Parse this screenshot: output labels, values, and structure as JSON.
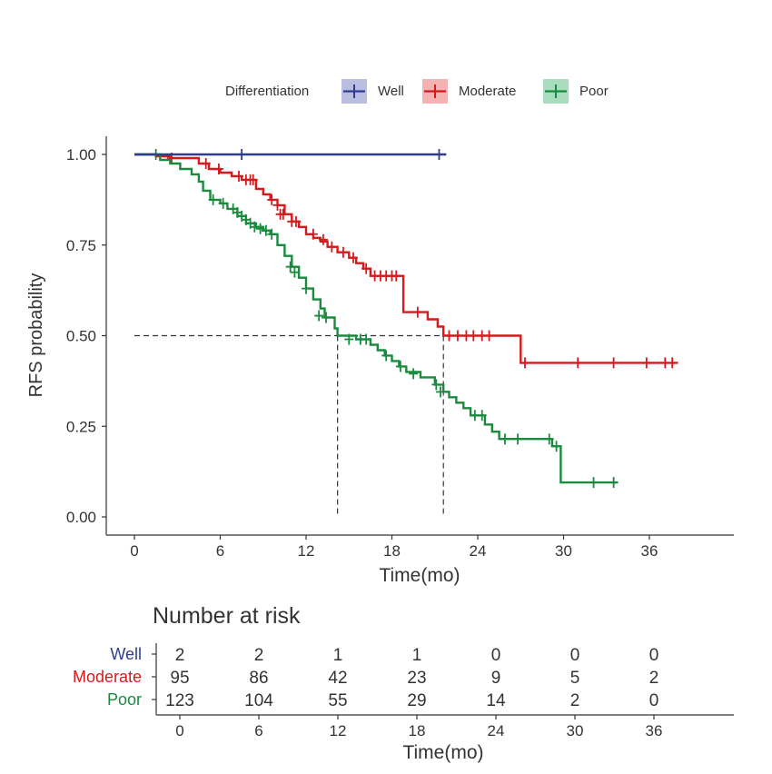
{
  "legend": {
    "title": "Differentiation",
    "entries": [
      {
        "label": "Well",
        "color": "#2e3d8f"
      },
      {
        "label": "Moderate",
        "color": "#d7191c"
      },
      {
        "label": "Poor",
        "color": "#1a8a3f"
      }
    ]
  },
  "chart_data": {
    "type": "line",
    "subtype": "kaplan-meier",
    "title": "",
    "xlabel": "Time(mo)",
    "ylabel": "RFS probability",
    "xlim": [
      -1,
      40.5
    ],
    "ylim": [
      0,
      1.05
    ],
    "xticks": [
      0,
      6,
      12,
      18,
      24,
      30,
      36
    ],
    "xtick_labels": [
      "0",
      "6",
      "12",
      "18",
      "24",
      "30",
      "36"
    ],
    "yticks": [
      0,
      0.25,
      0.5,
      0.75,
      1
    ],
    "ytick_labels": [
      "0.00",
      "0.25",
      "0.50",
      "0.75",
      "1.00"
    ],
    "median_line": {
      "y": 0.5,
      "x_start": 0,
      "x_end": 21.6
    },
    "median_markers": [
      {
        "x": 14.2,
        "series": "Poor"
      },
      {
        "x": 21.6,
        "series": "Moderate"
      }
    ],
    "series": [
      {
        "name": "Well",
        "color": "#2e3d8f",
        "steps": [
          [
            0,
            1.0
          ],
          [
            21.8,
            1.0
          ]
        ],
        "censors": [
          [
            7.5,
            1.0
          ],
          [
            21.3,
            1.0
          ]
        ]
      },
      {
        "name": "Moderate",
        "color": "#d7191c",
        "steps": [
          [
            0,
            1.0
          ],
          [
            1.5,
            1.0
          ],
          [
            1.5,
            0.995
          ],
          [
            2.5,
            0.995
          ],
          [
            2.5,
            0.99
          ],
          [
            4.5,
            0.99
          ],
          [
            4.5,
            0.975
          ],
          [
            5.2,
            0.975
          ],
          [
            5.2,
            0.96
          ],
          [
            6.0,
            0.96
          ],
          [
            6.0,
            0.95
          ],
          [
            6.8,
            0.95
          ],
          [
            6.8,
            0.94
          ],
          [
            7.5,
            0.94
          ],
          [
            7.5,
            0.93
          ],
          [
            8.5,
            0.93
          ],
          [
            8.5,
            0.905
          ],
          [
            9.0,
            0.905
          ],
          [
            9.0,
            0.89
          ],
          [
            9.5,
            0.89
          ],
          [
            9.5,
            0.875
          ],
          [
            10.0,
            0.875
          ],
          [
            10.0,
            0.86
          ],
          [
            10.5,
            0.86
          ],
          [
            10.5,
            0.835
          ],
          [
            11.0,
            0.835
          ],
          [
            11.0,
            0.815
          ],
          [
            11.5,
            0.815
          ],
          [
            11.5,
            0.8
          ],
          [
            12.0,
            0.8
          ],
          [
            12.0,
            0.78
          ],
          [
            12.5,
            0.78
          ],
          [
            12.5,
            0.77
          ],
          [
            13.0,
            0.77
          ],
          [
            13.0,
            0.76
          ],
          [
            13.5,
            0.76
          ],
          [
            13.5,
            0.745
          ],
          [
            14.2,
            0.745
          ],
          [
            14.2,
            0.73
          ],
          [
            15.0,
            0.73
          ],
          [
            15.0,
            0.715
          ],
          [
            15.5,
            0.715
          ],
          [
            15.5,
            0.7
          ],
          [
            16.0,
            0.7
          ],
          [
            16.0,
            0.685
          ],
          [
            16.5,
            0.685
          ],
          [
            16.5,
            0.665
          ],
          [
            18.8,
            0.665
          ],
          [
            18.8,
            0.565
          ],
          [
            20.5,
            0.565
          ],
          [
            20.5,
            0.545
          ],
          [
            21.2,
            0.545
          ],
          [
            21.2,
            0.525
          ],
          [
            21.6,
            0.525
          ],
          [
            21.6,
            0.5
          ],
          [
            27.0,
            0.5
          ],
          [
            27.0,
            0.425
          ],
          [
            38.0,
            0.425
          ]
        ],
        "censors": [
          [
            2.6,
            0.99
          ],
          [
            5.0,
            0.975
          ],
          [
            5.9,
            0.96
          ],
          [
            7.3,
            0.94
          ],
          [
            7.8,
            0.93
          ],
          [
            8.1,
            0.93
          ],
          [
            8.3,
            0.93
          ],
          [
            9.6,
            0.875
          ],
          [
            10.0,
            0.86
          ],
          [
            10.2,
            0.835
          ],
          [
            10.4,
            0.835
          ],
          [
            11.0,
            0.815
          ],
          [
            11.3,
            0.815
          ],
          [
            12.5,
            0.78
          ],
          [
            13.2,
            0.765
          ],
          [
            13.8,
            0.745
          ],
          [
            14.6,
            0.73
          ],
          [
            15.3,
            0.715
          ],
          [
            16.2,
            0.685
          ],
          [
            16.8,
            0.665
          ],
          [
            17.2,
            0.665
          ],
          [
            17.6,
            0.665
          ],
          [
            18.0,
            0.665
          ],
          [
            18.3,
            0.665
          ],
          [
            19.8,
            0.565
          ],
          [
            22.0,
            0.5
          ],
          [
            22.6,
            0.5
          ],
          [
            23.2,
            0.5
          ],
          [
            23.7,
            0.5
          ],
          [
            24.3,
            0.5
          ],
          [
            24.8,
            0.5
          ],
          [
            27.3,
            0.425
          ],
          [
            31.0,
            0.425
          ],
          [
            33.5,
            0.425
          ],
          [
            35.8,
            0.425
          ],
          [
            37.1,
            0.425
          ],
          [
            37.6,
            0.425
          ]
        ]
      },
      {
        "name": "Poor",
        "color": "#1a8a3f",
        "steps": [
          [
            0,
            1.0
          ],
          [
            1.8,
            1.0
          ],
          [
            1.8,
            0.985
          ],
          [
            2.5,
            0.985
          ],
          [
            2.5,
            0.975
          ],
          [
            3.2,
            0.975
          ],
          [
            3.2,
            0.96
          ],
          [
            4.0,
            0.96
          ],
          [
            4.0,
            0.945
          ],
          [
            4.5,
            0.945
          ],
          [
            4.5,
            0.925
          ],
          [
            4.8,
            0.925
          ],
          [
            4.8,
            0.9
          ],
          [
            5.3,
            0.9
          ],
          [
            5.3,
            0.875
          ],
          [
            6.0,
            0.875
          ],
          [
            6.0,
            0.865
          ],
          [
            6.5,
            0.865
          ],
          [
            6.5,
            0.85
          ],
          [
            7.2,
            0.85
          ],
          [
            7.2,
            0.83
          ],
          [
            7.8,
            0.83
          ],
          [
            7.8,
            0.81
          ],
          [
            8.5,
            0.81
          ],
          [
            8.5,
            0.8
          ],
          [
            9.0,
            0.8
          ],
          [
            9.0,
            0.79
          ],
          [
            9.5,
            0.79
          ],
          [
            9.5,
            0.78
          ],
          [
            10.0,
            0.78
          ],
          [
            10.0,
            0.75
          ],
          [
            10.5,
            0.75
          ],
          [
            10.5,
            0.72
          ],
          [
            11.0,
            0.72
          ],
          [
            11.0,
            0.69
          ],
          [
            11.5,
            0.69
          ],
          [
            11.5,
            0.66
          ],
          [
            12.0,
            0.66
          ],
          [
            12.0,
            0.63
          ],
          [
            12.5,
            0.63
          ],
          [
            12.5,
            0.6
          ],
          [
            13.0,
            0.6
          ],
          [
            13.0,
            0.575
          ],
          [
            13.3,
            0.575
          ],
          [
            13.3,
            0.55
          ],
          [
            14.0,
            0.55
          ],
          [
            14.0,
            0.52
          ],
          [
            14.2,
            0.52
          ],
          [
            14.2,
            0.5
          ],
          [
            15.5,
            0.5
          ],
          [
            15.5,
            0.49
          ],
          [
            16.5,
            0.49
          ],
          [
            16.5,
            0.475
          ],
          [
            17.0,
            0.475
          ],
          [
            17.0,
            0.46
          ],
          [
            17.5,
            0.46
          ],
          [
            17.5,
            0.445
          ],
          [
            18.0,
            0.445
          ],
          [
            18.0,
            0.43
          ],
          [
            18.5,
            0.43
          ],
          [
            18.5,
            0.415
          ],
          [
            19.0,
            0.415
          ],
          [
            19.0,
            0.4
          ],
          [
            20.0,
            0.4
          ],
          [
            20.0,
            0.385
          ],
          [
            21.0,
            0.385
          ],
          [
            21.0,
            0.365
          ],
          [
            21.6,
            0.365
          ],
          [
            21.6,
            0.345
          ],
          [
            22.0,
            0.345
          ],
          [
            22.0,
            0.33
          ],
          [
            22.5,
            0.33
          ],
          [
            22.5,
            0.315
          ],
          [
            23.0,
            0.315
          ],
          [
            23.0,
            0.3
          ],
          [
            23.5,
            0.3
          ],
          [
            23.5,
            0.28
          ],
          [
            24.5,
            0.28
          ],
          [
            24.5,
            0.255
          ],
          [
            25.0,
            0.255
          ],
          [
            25.0,
            0.235
          ],
          [
            25.5,
            0.235
          ],
          [
            25.5,
            0.215
          ],
          [
            29.2,
            0.215
          ],
          [
            29.2,
            0.195
          ],
          [
            29.8,
            0.195
          ],
          [
            29.8,
            0.095
          ],
          [
            33.8,
            0.095
          ]
        ],
        "censors": [
          [
            1.5,
            1.0
          ],
          [
            5.5,
            0.875
          ],
          [
            6.2,
            0.865
          ],
          [
            6.9,
            0.85
          ],
          [
            7.2,
            0.84
          ],
          [
            7.5,
            0.83
          ],
          [
            7.8,
            0.82
          ],
          [
            8.1,
            0.81
          ],
          [
            8.4,
            0.8
          ],
          [
            8.8,
            0.795
          ],
          [
            9.2,
            0.79
          ],
          [
            9.6,
            0.78
          ],
          [
            10.9,
            0.69
          ],
          [
            11.2,
            0.675
          ],
          [
            12.0,
            0.63
          ],
          [
            12.9,
            0.555
          ],
          [
            13.4,
            0.55
          ],
          [
            15.0,
            0.49
          ],
          [
            15.8,
            0.49
          ],
          [
            16.2,
            0.49
          ],
          [
            17.6,
            0.445
          ],
          [
            18.6,
            0.415
          ],
          [
            19.5,
            0.395
          ],
          [
            21.1,
            0.365
          ],
          [
            21.4,
            0.345
          ],
          [
            23.8,
            0.28
          ],
          [
            24.3,
            0.28
          ],
          [
            25.9,
            0.215
          ],
          [
            26.8,
            0.215
          ],
          [
            29.0,
            0.215
          ],
          [
            29.5,
            0.195
          ],
          [
            32.1,
            0.095
          ],
          [
            33.5,
            0.095
          ]
        ]
      }
    ]
  },
  "risk_table": {
    "title": "Number at risk",
    "xlabel": "Time(mo)",
    "time_points": [
      0,
      6,
      12,
      18,
      24,
      30,
      36
    ],
    "time_labels": [
      "0",
      "6",
      "12",
      "18",
      "24",
      "30",
      "36"
    ],
    "rows": [
      {
        "label": "Well",
        "color": "#2e3d8f",
        "counts": [
          "2",
          "2",
          "1",
          "1",
          "0",
          "0",
          "0"
        ]
      },
      {
        "label": "Moderate",
        "color": "#d7191c",
        "counts": [
          "95",
          "86",
          "42",
          "23",
          "9",
          "5",
          "2"
        ]
      },
      {
        "label": "Poor",
        "color": "#1a8a3f",
        "counts": [
          "123",
          "104",
          "55",
          "29",
          "14",
          "2",
          "0"
        ]
      }
    ]
  }
}
